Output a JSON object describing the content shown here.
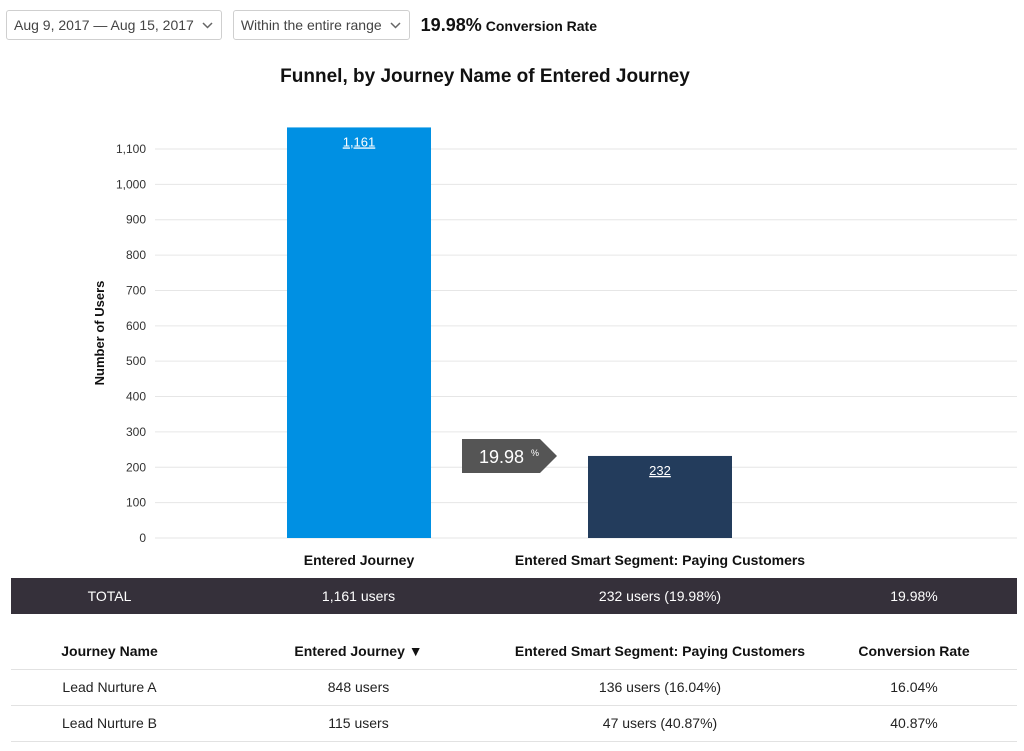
{
  "toolbar": {
    "date_range": "Aug 9, 2017 — Aug 15, 2017",
    "window": "Within the entire range",
    "conversion_value": "19.98%",
    "conversion_label": "Conversion Rate"
  },
  "chart_data": {
    "type": "bar",
    "title": "Funnel, by Journey Name of Entered Journey",
    "xlabel": "",
    "ylabel": "Number of Users",
    "categories": [
      "Entered Journey",
      "Entered Smart Segment: Paying Customers"
    ],
    "values": [
      1161,
      232
    ],
    "data_labels": [
      "1,161",
      "232"
    ],
    "bar_colors": [
      "#0090e3",
      "#233c5c"
    ],
    "ylim": [
      0,
      1100
    ],
    "yticks": [
      0,
      100,
      200,
      300,
      400,
      500,
      600,
      700,
      800,
      900,
      1000,
      1100
    ],
    "ytick_labels": [
      "0",
      "100",
      "200",
      "300",
      "400",
      "500",
      "600",
      "700",
      "800",
      "900",
      "1,000",
      "1,100"
    ],
    "grid": true,
    "conversion_marker": {
      "value": "19.98",
      "unit": "%",
      "color": "#555555"
    }
  },
  "table": {
    "total": {
      "label": "TOTAL",
      "entered": "1,161 users",
      "segment": "232 users (19.98%)",
      "rate": "19.98%"
    },
    "headers": {
      "name": "Journey Name",
      "entered": "Entered Journey ▼",
      "segment": "Entered Smart Segment: Paying Customers",
      "rate": "Conversion Rate"
    },
    "rows": [
      {
        "name": "Lead Nurture A",
        "entered": "848 users",
        "segment": "136 users (16.04%)",
        "rate": "16.04%"
      },
      {
        "name": "Lead Nurture B",
        "entered": "115 users",
        "segment": "47 users (40.87%)",
        "rate": "40.87%"
      }
    ]
  }
}
